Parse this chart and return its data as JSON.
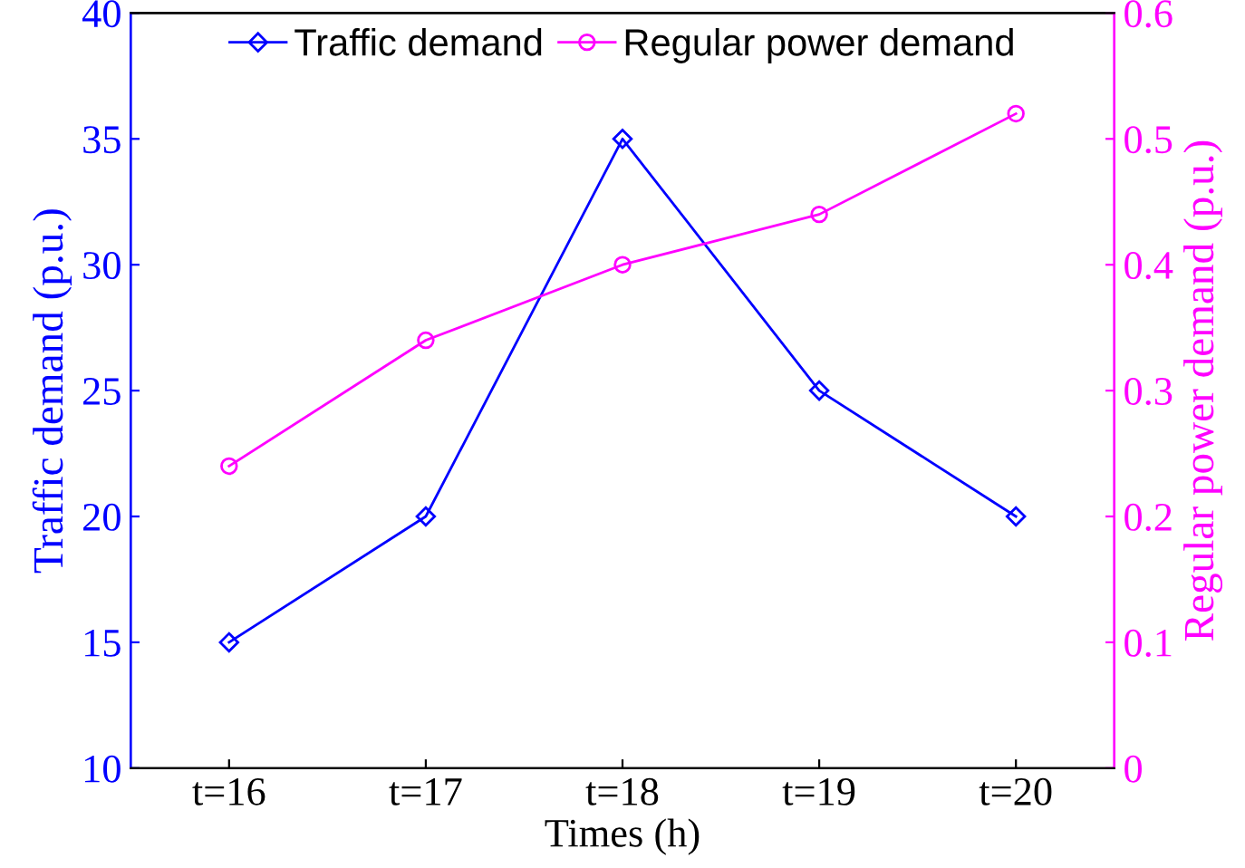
{
  "chart_data": {
    "type": "line",
    "xlabel": "Times (h)",
    "ylabel": "Traffic demand (p.u.)",
    "y2label": "Regular power demand (p.u.)",
    "categories": [
      "t=16",
      "t=17",
      "t=18",
      "t=19",
      "t=20"
    ],
    "series": [
      {
        "name": "Traffic demand",
        "color": "#0000ff",
        "values": [
          15,
          20,
          35,
          25,
          20
        ],
        "marker": "diamond"
      },
      {
        "name": "Regular power demand",
        "color": "#ff00ff",
        "values": [
          0.24,
          0.34,
          0.4,
          0.44,
          0.52
        ],
        "marker": "circle",
        "axis": "y2"
      }
    ],
    "ylim": [
      10,
      40
    ],
    "yticks": [
      10,
      15,
      20,
      25,
      30,
      35,
      40
    ],
    "y2lim": [
      0,
      0.6
    ],
    "y2ticks": [
      0,
      0.1,
      0.2,
      0.3,
      0.4,
      0.5,
      0.6
    ],
    "legend": "top",
    "grid": false,
    "line_style": "solid"
  }
}
